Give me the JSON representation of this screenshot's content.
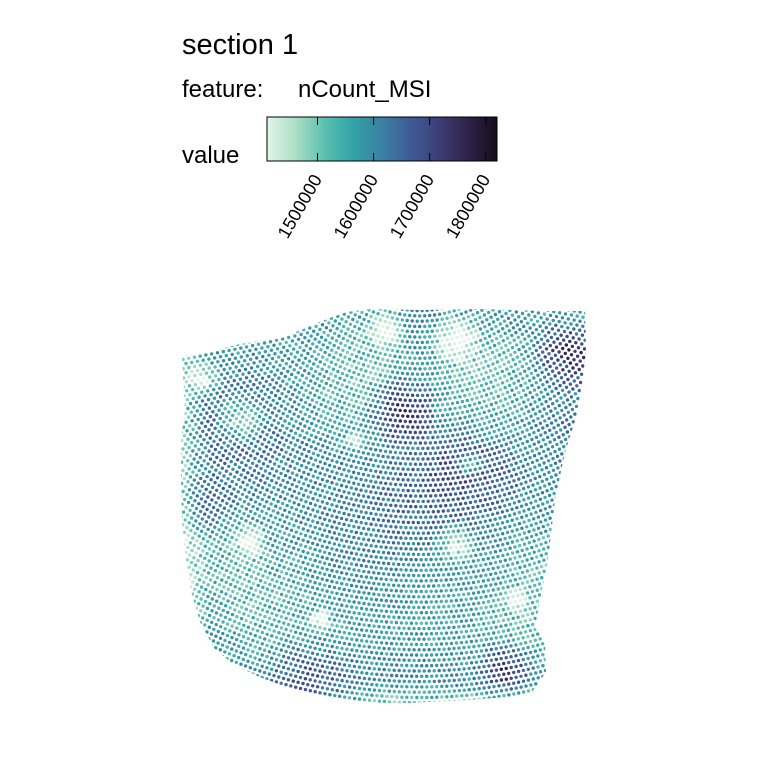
{
  "chart_data": {
    "type": "spatial-scatter",
    "title": "section 1",
    "subtitle_prefix": "feature:",
    "feature": "nCount_MSI",
    "legend": {
      "title": "value",
      "placement": "top",
      "ticks": [
        "1500000",
        "1600000",
        "1700000",
        "1800000"
      ],
      "tick_values": [
        1500000,
        1600000,
        1700000,
        1800000
      ],
      "range": [
        1410000,
        1820000
      ],
      "palette": [
        "#e3f5e6",
        "#a9dfc6",
        "#5cc0b1",
        "#33a2a7",
        "#3a80a3",
        "#3e5b97",
        "#3d3d74",
        "#2e2249",
        "#150e1a"
      ]
    },
    "grid": false,
    "axes": false
  }
}
